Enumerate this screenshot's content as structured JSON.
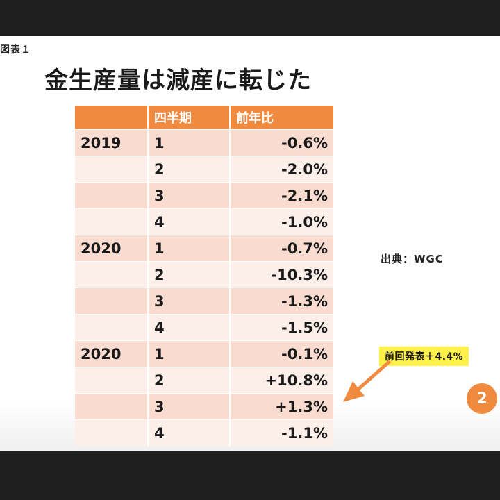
{
  "slide": {
    "figure_label": "図表１",
    "title": "金生産量は減産に転じた",
    "source": "出典：WGC",
    "callout": "前回発表＋4.4%",
    "badge": "2",
    "accent_color": "#f08a3e",
    "callout_color": "#fff04a"
  },
  "table": {
    "headers": [
      "",
      "四半期",
      "前年比"
    ],
    "rows": [
      {
        "year": "2019",
        "quarter": "1",
        "value": "-0.6%"
      },
      {
        "year": "",
        "quarter": "2",
        "value": "-2.0%"
      },
      {
        "year": "",
        "quarter": "3",
        "value": "-2.1%"
      },
      {
        "year": "",
        "quarter": "4",
        "value": "-1.0%"
      },
      {
        "year": "2020",
        "quarter": "1",
        "value": "-0.7%"
      },
      {
        "year": "",
        "quarter": "2",
        "value": "-10.3%"
      },
      {
        "year": "",
        "quarter": "3",
        "value": "-1.3%"
      },
      {
        "year": "",
        "quarter": "4",
        "value": "-1.5%"
      },
      {
        "year": "2020",
        "quarter": "1",
        "value": "-0.1%"
      },
      {
        "year": "",
        "quarter": "2",
        "value": "+10.8%"
      },
      {
        "year": "",
        "quarter": "3",
        "value": "+1.3%"
      },
      {
        "year": "",
        "quarter": "4",
        "value": "-1.1%"
      }
    ]
  }
}
